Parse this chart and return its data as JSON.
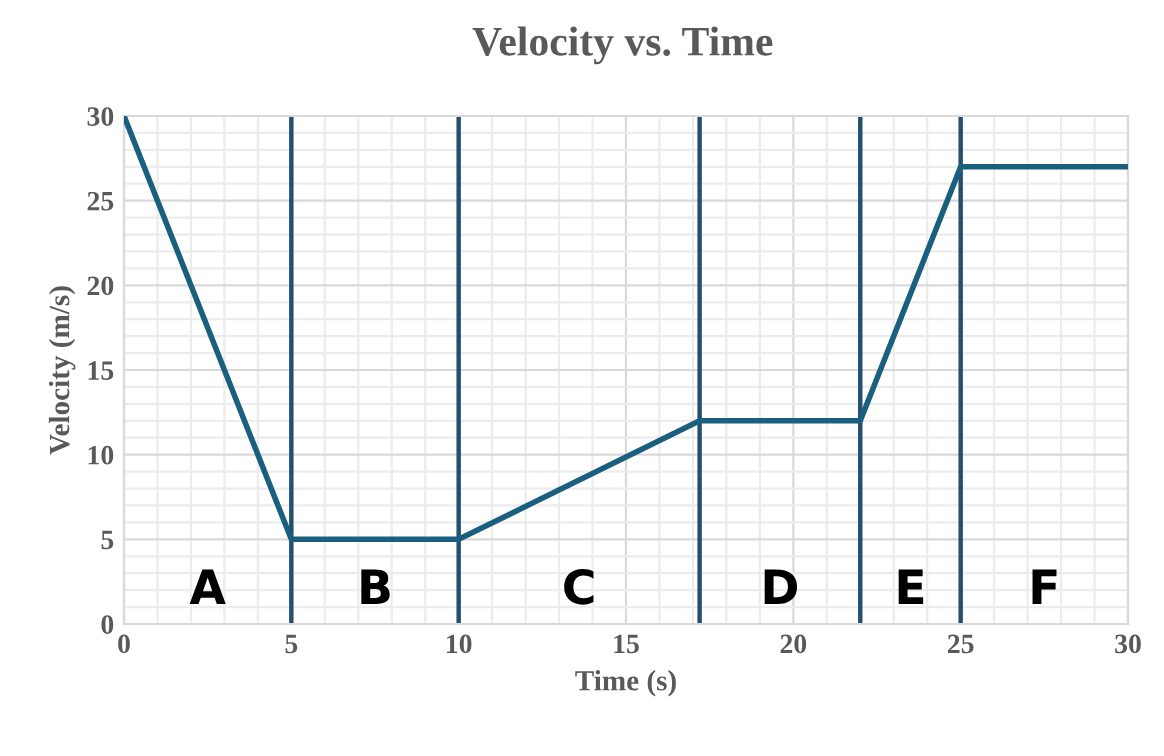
{
  "chart_data": {
    "type": "line",
    "title": "Velocity vs. Time",
    "xlabel": "Time (s)",
    "ylabel": "Velocity (m/s)",
    "x": [
      0,
      5,
      10,
      17.2,
      22,
      25,
      30
    ],
    "series": [
      {
        "color": "#1b5f7e",
        "values": [
          30,
          5,
          5,
          12,
          12,
          27,
          27
        ]
      }
    ],
    "xlim": [
      0,
      30
    ],
    "ylim": [
      0,
      30
    ],
    "xticks": [
      0,
      5,
      10,
      15,
      20,
      25,
      30
    ],
    "yticks": [
      0,
      5,
      10,
      15,
      20,
      25,
      30
    ],
    "grid": true,
    "marker": "none",
    "line_style": "solid",
    "ref_lines": [
      {
        "axis": "x",
        "value": 5,
        "color": "#244f6e"
      },
      {
        "axis": "x",
        "value": 10,
        "color": "#244f6e"
      },
      {
        "axis": "x",
        "value": 17.2,
        "color": "#244f6e"
      },
      {
        "axis": "x",
        "value": 22,
        "color": "#244f6e"
      },
      {
        "axis": "x",
        "value": 25,
        "color": "#244f6e"
      }
    ],
    "annotations": [
      "A",
      "B",
      "C",
      "D",
      "E",
      "F"
    ]
  }
}
